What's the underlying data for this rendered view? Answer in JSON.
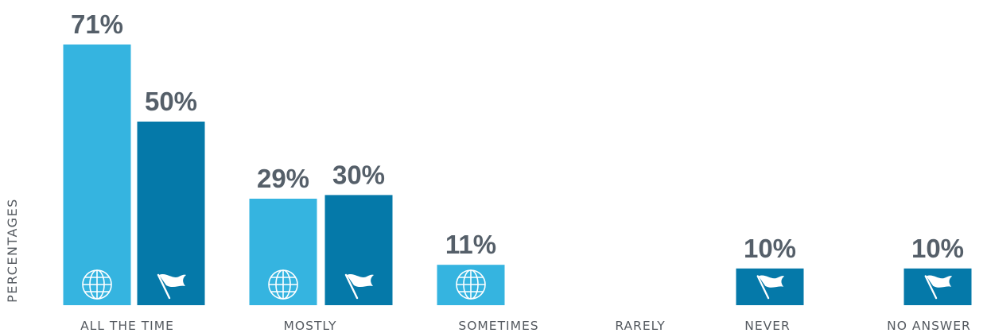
{
  "colors": {
    "series_1": "#35b4e0",
    "series_2": "#0579a9",
    "text": "#555a60",
    "value_text": "#555f69"
  },
  "chart_data": {
    "type": "bar",
    "ylabel": "PERCENTAGES",
    "xlabel": "",
    "categories": [
      "ALL THE TIME",
      "MOSTLY",
      "SOMETIMES",
      "RARELY",
      "NEVER",
      "NO ANSWER"
    ],
    "series": [
      {
        "icon": "globe-icon",
        "color": "#35b4e0",
        "values": [
          71,
          29,
          11,
          null,
          null,
          null
        ],
        "labels": [
          "71%",
          "29%",
          "11%",
          "",
          "",
          ""
        ]
      },
      {
        "icon": "flag-icon",
        "color": "#0579a9",
        "values": [
          50,
          30,
          null,
          null,
          10,
          10
        ],
        "labels": [
          "50%",
          "30%",
          "",
          "",
          "10%",
          "10%"
        ]
      }
    ],
    "ylim": [
      0,
      71
    ],
    "grid": false,
    "legend": "none"
  }
}
